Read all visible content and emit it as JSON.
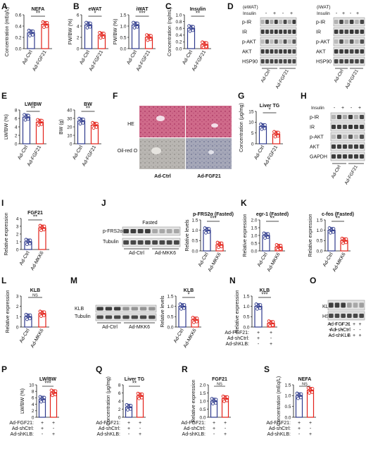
{
  "colors": {
    "ctrl": "#2e3a8c",
    "trt": "#e32119",
    "black": "#111111"
  },
  "stats": {
    "A": "**",
    "B1": "*",
    "B2": "***",
    "C": "**",
    "E1": "**",
    "E2": "**",
    "G": "*",
    "I": "**",
    "J": "***",
    "K1": "**",
    "K2": "**",
    "L": "NS",
    "M": "*",
    "N": "***",
    "P": "***",
    "Q": "**",
    "R": "NS",
    "S": "NS"
  },
  "panels": {
    "A": {
      "letter": "A",
      "title": "NEFA",
      "ylabel": "Concentration (mEq/L)",
      "yticks": [
        "0.0",
        "0.2",
        "0.4",
        "0.6"
      ],
      "groups": [
        "Ad-Ctrl",
        "Ad-FGF21"
      ],
      "values": [
        0.28,
        0.43
      ]
    },
    "B1": {
      "letter": "B",
      "title": "eWAT",
      "ylabel": "FW/BW (%)",
      "yticks": [
        "0",
        "2",
        "4",
        "6"
      ],
      "groups": [
        "Ad-Ctrl",
        "Ad-FGF21"
      ],
      "values": [
        4.2,
        2.4
      ]
    },
    "B2": {
      "title": "iWAT",
      "ylabel": "FW/BW (%)",
      "yticks": [
        "0.0",
        "0.5",
        "1.0",
        "1.5"
      ],
      "groups": [
        "Ad-Ctrl",
        "Ad-FGF21"
      ],
      "values": [
        1.05,
        0.5
      ]
    },
    "C": {
      "letter": "C",
      "title": "Insulin",
      "ylabel": "Concentration (ng/mL)",
      "yticks": [
        "0.0",
        "0.2",
        "0.4",
        "0.6",
        "0.8",
        "1.0"
      ],
      "groups": [
        "Ad-Ctrl",
        "Ad-FGF21"
      ],
      "values": [
        0.6,
        0.12
      ]
    },
    "E1": {
      "letter": "E",
      "title": "LW/BW",
      "ylabel": "LW/BW (%)",
      "yticks": [
        "0",
        "2",
        "4",
        "6",
        "8"
      ],
      "groups": [
        "Ad-Ctrl",
        "Ad-FGF21"
      ],
      "values": [
        6.3,
        5.1
      ]
    },
    "E2": {
      "title": "BW",
      "ylabel": "BW (g)",
      "yticks": [
        "0",
        "10",
        "20",
        "30",
        "40"
      ],
      "groups": [
        "Ad-Ctrl",
        "Ad-FGF21"
      ],
      "values": [
        27,
        22
      ]
    },
    "G": {
      "letter": "G",
      "title": "Liver TG",
      "ylabel": "Concentration (μg/mg)",
      "yticks": [
        "0",
        "5",
        "10",
        "15"
      ],
      "groups": [
        "Ad-Ctrl",
        "Ad-FGF21"
      ],
      "values": [
        8,
        4.5
      ]
    },
    "I": {
      "letter": "I",
      "title": "FGF21",
      "ylabel": "Relative expression",
      "yticks": [
        "0",
        "1",
        "2",
        "3",
        "4"
      ],
      "groups": [
        "Ad-Ctrl",
        "Ad-MKK6"
      ],
      "values": [
        1,
        2.8
      ]
    },
    "J": {
      "title": "p-FRS2α (Fasted)",
      "ylabel": "Relative levels",
      "yticks": [
        "0.0",
        "0.5",
        "1.0",
        "1.5"
      ],
      "groups": [
        "Ad-Ctrl",
        "Ad-MKK6"
      ],
      "values": [
        1,
        0.3
      ]
    },
    "K1": {
      "letter": "K",
      "title": "egr-1 (Fasted)",
      "ylabel": "Relative expression",
      "yticks": [
        "0.0",
        "0.5",
        "1.0",
        "1.5",
        "2.0"
      ],
      "groups": [
        "Ad-Ctrl",
        "Ad-MKK6"
      ],
      "values": [
        1,
        0.25
      ]
    },
    "K2": {
      "title": "c-fos (Fasted)",
      "ylabel": "Relative expression",
      "yticks": [
        "0.0",
        "0.5",
        "1.0",
        "1.5"
      ],
      "groups": [
        "Ad-Ctrl",
        "Ad-MKK6"
      ],
      "values": [
        1,
        0.5
      ]
    },
    "L": {
      "letter": "L",
      "title": "KLB",
      "ylabel": "Relative expression",
      "yticks": [
        "0",
        "1",
        "2",
        "3"
      ],
      "groups": [
        "Ad-Ctrl",
        "Ad-MKK6"
      ],
      "values": [
        1,
        1.3
      ]
    },
    "M": {
      "title": "KLB",
      "ylabel": "Relative levels",
      "yticks": [
        "0.0",
        "0.5",
        "1.0",
        "1.5"
      ],
      "groups": [
        "Ad-Ctrl",
        "Ad-MKK6"
      ],
      "values": [
        1,
        0.35
      ]
    },
    "N": {
      "letter": "N",
      "title": "KLB",
      "ylabel": "Relative expression",
      "yticks": [
        "0.0",
        "0.5",
        "1.0",
        "1.5"
      ],
      "values": [
        1,
        0.18
      ]
    },
    "P": {
      "letter": "P",
      "title": "LW/BW",
      "ylabel": "LW/BW (%)",
      "yticks": [
        "0",
        "2",
        "4",
        "6",
        "8",
        "10"
      ],
      "values": [
        5.6,
        7.6
      ]
    },
    "Q": {
      "letter": "Q",
      "title": "Liver TG",
      "ylabel": "Concentration (μg/mg)",
      "yticks": [
        "0",
        "2",
        "4",
        "6",
        "8"
      ],
      "values": [
        2.5,
        5.3
      ]
    },
    "R": {
      "letter": "R",
      "title": "FGF21",
      "ylabel": "Relative expression",
      "yticks": [
        "0.0",
        "0.5",
        "1.0",
        "1.5",
        "2.0"
      ],
      "values": [
        1,
        1.15
      ]
    },
    "S": {
      "letter": "S",
      "title": "NEFA",
      "ylabel": "Concentration (mEq/L)",
      "yticks": [
        "0.0",
        "0.5",
        "1.0",
        "1.5"
      ],
      "values": [
        1,
        1.25
      ]
    }
  },
  "shRow": {
    "labels": [
      "Ad-FGF21:",
      "Ad-shCtrl:",
      "Ad-shKLB:"
    ],
    "col1": [
      "+",
      "+",
      "-"
    ],
    "col2": [
      "+",
      "-",
      "+"
    ]
  },
  "blots": {
    "D": {
      "letter": "D",
      "tissue1": "(eWAT)",
      "tissue2": "(iWAT)",
      "insulin": "Insulin",
      "signs": [
        "-",
        "+",
        "-",
        "+"
      ],
      "rows1": [
        "p-IR",
        "IR",
        "p-AKT",
        "AKT",
        "HSP90"
      ],
      "rows2": [
        "p-IR",
        "IR",
        "p-AKT",
        "AKT",
        "HSP90"
      ],
      "groups": [
        "Ad-Ctrl",
        "Ad-FGF21"
      ]
    },
    "F": {
      "letter": "F",
      "rows": [
        "HE",
        "Oil-red O"
      ],
      "cols": [
        "Ad-Ctrl",
        "Ad-FGF21"
      ]
    },
    "H": {
      "letter": "H",
      "insulin": "Insulin",
      "signs": [
        "-",
        "+",
        "-",
        "+"
      ],
      "rows": [
        "p-IR",
        "IR",
        "p-AKT",
        "AKT",
        "GAPDH"
      ],
      "groups": [
        "Ad-Ctrl",
        "Ad-FGF21"
      ]
    },
    "J": {
      "letter": "J",
      "header": "Fasted",
      "rows": [
        "p-FRS2α",
        "Tubulin"
      ],
      "groups": [
        "Ad-Ctrl",
        "Ad-MKK6"
      ]
    },
    "M": {
      "letter": "M",
      "rows": [
        "KLB",
        "Tubulin"
      ],
      "groups": [
        "Ad-Ctrl",
        "Ad-MKK6"
      ]
    },
    "O": {
      "letter": "O",
      "rows": [
        "KLB",
        "HSP90"
      ],
      "conds": [
        {
          "label": "Ad-FGF21",
          "signs": [
            "+",
            "+",
            "+",
            "+",
            "+",
            "+"
          ]
        },
        {
          "label": "Ad-shCtrl",
          "signs": [
            "+",
            "+",
            "+",
            "-",
            "-",
            "-"
          ]
        },
        {
          "label": "Ad-shKLB",
          "signs": [
            "-",
            "-",
            "-",
            "+",
            "+",
            "+"
          ]
        }
      ]
    }
  }
}
